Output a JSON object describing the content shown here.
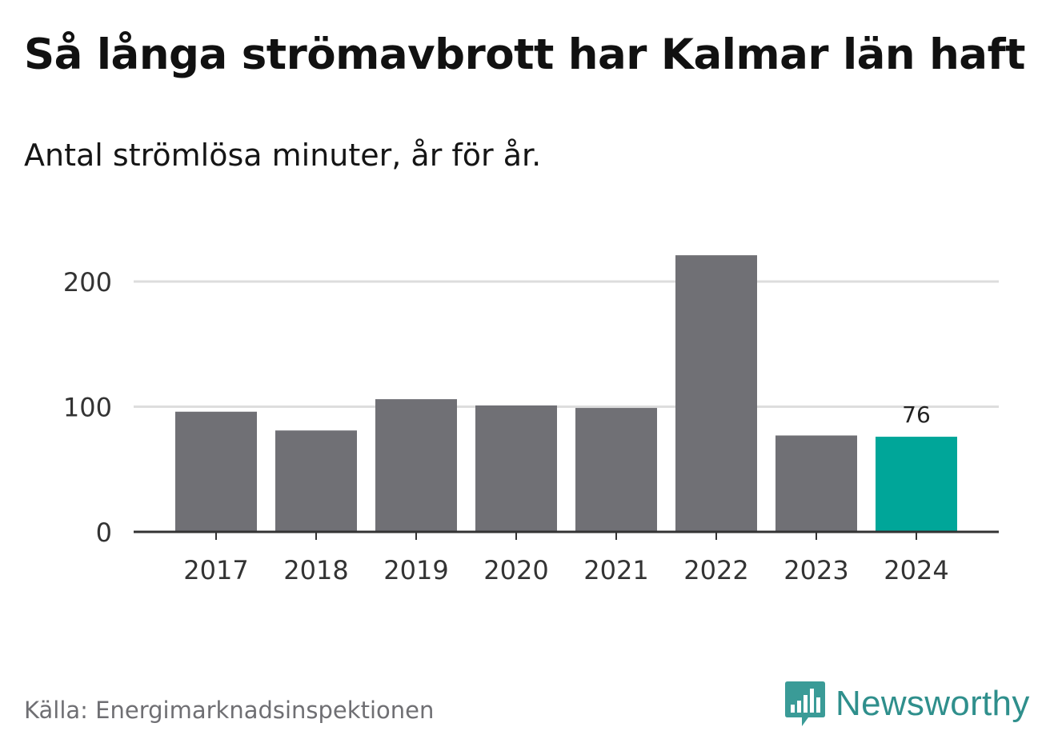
{
  "title": "Så långa strömavbrott har Kalmar län haft",
  "subtitle": "Antal strömlösa minuter, år för år.",
  "source": "Källa: Energimarknadsinspektionen",
  "brand": {
    "name": "Newsworthy",
    "icon": "newsworthy-logo-icon",
    "color": "#3a9b97"
  },
  "colors": {
    "bar": "#707075",
    "highlight": "#00a699",
    "grid": "#dddddd",
    "axis": "#333333",
    "tick_text": "#333333"
  },
  "chart_data": {
    "type": "bar",
    "title": "Så långa strömavbrott har Kalmar län haft",
    "subtitle": "Antal strömlösa minuter, år för år.",
    "xlabel": "",
    "ylabel": "",
    "categories": [
      "2017",
      "2018",
      "2019",
      "2020",
      "2021",
      "2022",
      "2023",
      "2024"
    ],
    "values": [
      96,
      81,
      106,
      101,
      99,
      221,
      77,
      76
    ],
    "highlight_index": 7,
    "data_labels": [
      {
        "index": 7,
        "text": "76"
      }
    ],
    "ylim": [
      0,
      240
    ],
    "yticks": [
      0,
      100,
      200
    ],
    "ytick_labels": [
      "0",
      "100",
      "200"
    ],
    "grid": true
  }
}
